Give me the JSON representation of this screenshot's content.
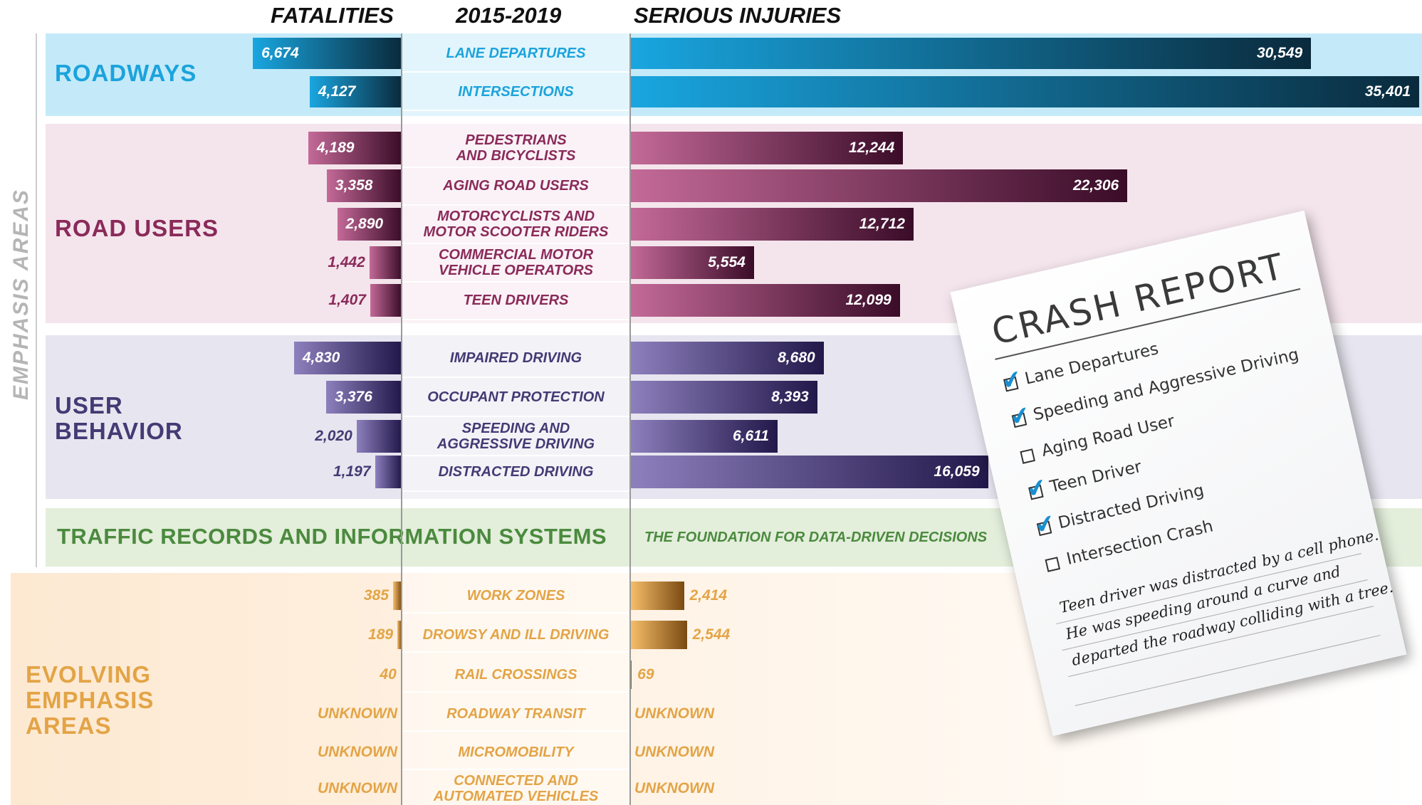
{
  "chart_data": {
    "type": "butterfly",
    "series_names": [
      "FATALITIES",
      "SERIOUS INJURIES"
    ],
    "period": "2015-2019",
    "side_label": "EMPHASIS AREAS",
    "groups": [
      {
        "name": "ROADWAYS",
        "color": "#1ba3dc",
        "bar_colors": [
          "#19a6e0",
          "#0a2a3c"
        ],
        "categories": [
          "LANE DEPARTURES",
          "INTERSECTIONS"
        ],
        "fatalities": [
          6674,
          4127
        ],
        "fatalities_labels": [
          "6,674",
          "4,127"
        ],
        "injuries": [
          30549,
          35401
        ],
        "injuries_labels": [
          "30,549",
          "35,401"
        ]
      },
      {
        "name": "ROAD USERS",
        "color": "#8a2a5a",
        "bar_colors": [
          "#c46a98",
          "#3a0c28"
        ],
        "categories": [
          "PEDESTRIANS\nAND BICYCLISTS",
          "AGING ROAD USERS",
          "MOTORCYCLISTS AND\nMOTOR SCOOTER RIDERS",
          "COMMERCIAL MOTOR\nVEHICLE OPERATORS",
          "TEEN DRIVERS"
        ],
        "fatalities": [
          4189,
          3358,
          2890,
          1442,
          1407
        ],
        "fatalities_labels": [
          "4,189",
          "3,358",
          "2,890",
          "1,442",
          "1,407"
        ],
        "injuries": [
          12244,
          22306,
          12712,
          5554,
          12099
        ],
        "injuries_labels": [
          "12,244",
          "22,306",
          "12,712",
          "5,554",
          "12,099"
        ]
      },
      {
        "name": "USER\nBEHAVIOR",
        "color": "#443a74",
        "bar_colors": [
          "#8d80bd",
          "#22184a"
        ],
        "categories": [
          "IMPAIRED DRIVING",
          "OCCUPANT PROTECTION",
          "SPEEDING AND\nAGGRESSIVE DRIVING",
          "DISTRACTED DRIVING"
        ],
        "fatalities": [
          4830,
          3376,
          2020,
          1197
        ],
        "fatalities_labels": [
          "4,830",
          "3,376",
          "2,020",
          "1,197"
        ],
        "injuries": [
          8680,
          8393,
          6611,
          16059
        ],
        "injuries_labels": [
          "8,680",
          "8,393",
          "6,611",
          "16,059"
        ]
      },
      {
        "name": "TRAFFIC RECORDS AND INFORMATION SYSTEMS",
        "color": "#4b8a3e",
        "note": "THE FOUNDATION FOR DATA-DRIVEN DECISIONS"
      },
      {
        "name": "EVOLVING\nEMPHASIS\nAREAS",
        "color": "#e3a446",
        "bar_colors": [
          "#f7bf6a",
          "#7a4a12"
        ],
        "categories": [
          "WORK ZONES",
          "DROWSY AND ILL DRIVING",
          "RAIL CROSSINGS",
          "ROADWAY TRANSIT",
          "MICROMOBILITY",
          "CONNECTED AND\nAUTOMATED VEHICLES"
        ],
        "fatalities": [
          385,
          189,
          40,
          null,
          null,
          null
        ],
        "fatalities_labels": [
          "385",
          "189",
          "40",
          "UNKNOWN",
          "UNKNOWN",
          "UNKNOWN"
        ],
        "injuries": [
          2414,
          2544,
          69,
          null,
          null,
          null
        ],
        "injuries_labels": [
          "2,414",
          "2,544",
          "69",
          "UNKNOWN",
          "UNKNOWN",
          "UNKNOWN"
        ]
      }
    ]
  },
  "crash_report": {
    "title": "CRASH REPORT",
    "items": [
      {
        "label": "Lane Departures",
        "checked": true
      },
      {
        "label": "Speeding and Aggressive Driving",
        "checked": true
      },
      {
        "label": "Aging Road User",
        "checked": false
      },
      {
        "label": "Teen Driver",
        "checked": true
      },
      {
        "label": "Distracted Driving",
        "checked": true
      },
      {
        "label": "Intersection Crash",
        "checked": false
      }
    ],
    "note": [
      "Teen driver was distracted by a cell phone.",
      "He was speeding around a curve and",
      "departed the roadway colliding with a tree."
    ]
  }
}
